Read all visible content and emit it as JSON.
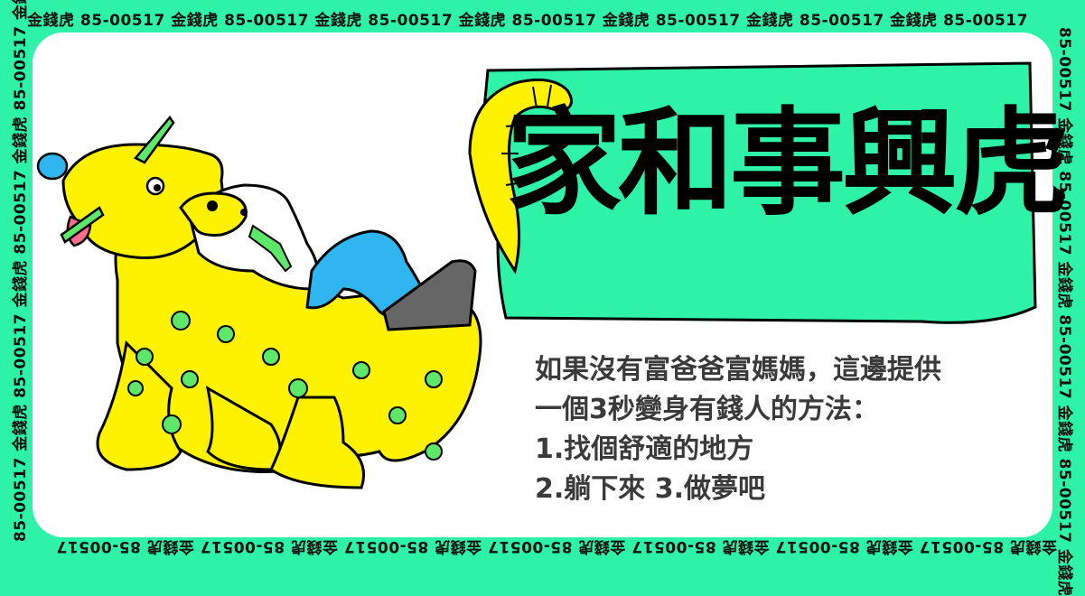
{
  "border": {
    "repeat_text": "金錢虎 85-00517 金錢虎 85-00517 金錢虎 85-00517 金錢虎 85-00517 金錢虎 85-00517 金錢虎 85-00517 金錢虎 85-00517",
    "side_text": "85-00517 金錢虎 85-00517 金錢虎 85-00517 金錢虎 85-00517 金錢虎"
  },
  "title": "家和事興虎",
  "body": {
    "line1": "如果沒有富爸爸富媽媽，這邊提供",
    "line2": "一個3秒變身有錢人的方法：",
    "line3": "1.找個舒適的地方",
    "line4": "2.躺下來 3.做夢吧"
  },
  "colors": {
    "frame": "#2EF2A7",
    "tiger": "#FFF200",
    "spots": "#5DE86A",
    "jeans": "#2FB5F0",
    "title_bg": "#2EF2A7"
  },
  "icons": {
    "illustration": "tiger-with-man-icon"
  }
}
